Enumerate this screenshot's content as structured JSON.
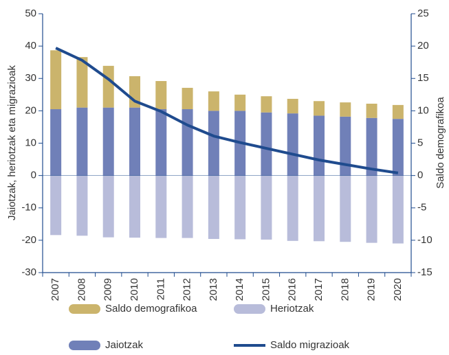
{
  "chart_data": {
    "type": "bar",
    "ylabel": "Jaiotzak, heriotzak eta migrazioak",
    "y2label": "Saldo demografikoa",
    "categories": [
      "2007",
      "2008",
      "2009",
      "2010",
      "2011",
      "2012",
      "2013",
      "2014",
      "2015",
      "2016",
      "2017",
      "2018",
      "2019",
      "2020"
    ],
    "series": [
      {
        "name": "Jaiotzak",
        "color": "#7080b8",
        "kind": "bar",
        "values": [
          20.5,
          21,
          21,
          21,
          20.5,
          20.5,
          20,
          20,
          19.5,
          19.2,
          18.5,
          18.2,
          17.8,
          17.5
        ]
      },
      {
        "name": "Saldo demografikoa",
        "color": "#cbb46c",
        "kind": "bar",
        "values": [
          18.2,
          15.6,
          12.9,
          9.7,
          8.7,
          6.6,
          6,
          5,
          5,
          4.5,
          4.5,
          4.4,
          4.4,
          4.3
        ]
      },
      {
        "name": "Heriotzak",
        "color": "#b8bcda",
        "kind": "bar",
        "values": [
          -18.4,
          -18.6,
          -19.1,
          -19.2,
          -19.3,
          -19.3,
          -19.6,
          -19.7,
          -19.8,
          -20.2,
          -20.3,
          -20.5,
          -20.8,
          -21
        ]
      },
      {
        "name": "Saldo migrazioak",
        "color": "#1f4b8e",
        "kind": "line",
        "axis": "y2",
        "values": [
          19.7,
          17.8,
          14.9,
          11.5,
          9.9,
          7.8,
          6.1,
          5.1,
          4.2,
          3.3,
          2.4,
          1.7,
          1.0,
          0.4
        ]
      }
    ],
    "ylim": [
      -30,
      50
    ],
    "yticks": [
      -30,
      -20,
      -10,
      0,
      10,
      20,
      30,
      40,
      50
    ],
    "y2lim": [
      -15,
      25
    ],
    "y2ticks": [
      -15,
      -10,
      -5,
      0,
      5,
      10,
      15,
      20,
      25
    ]
  }
}
